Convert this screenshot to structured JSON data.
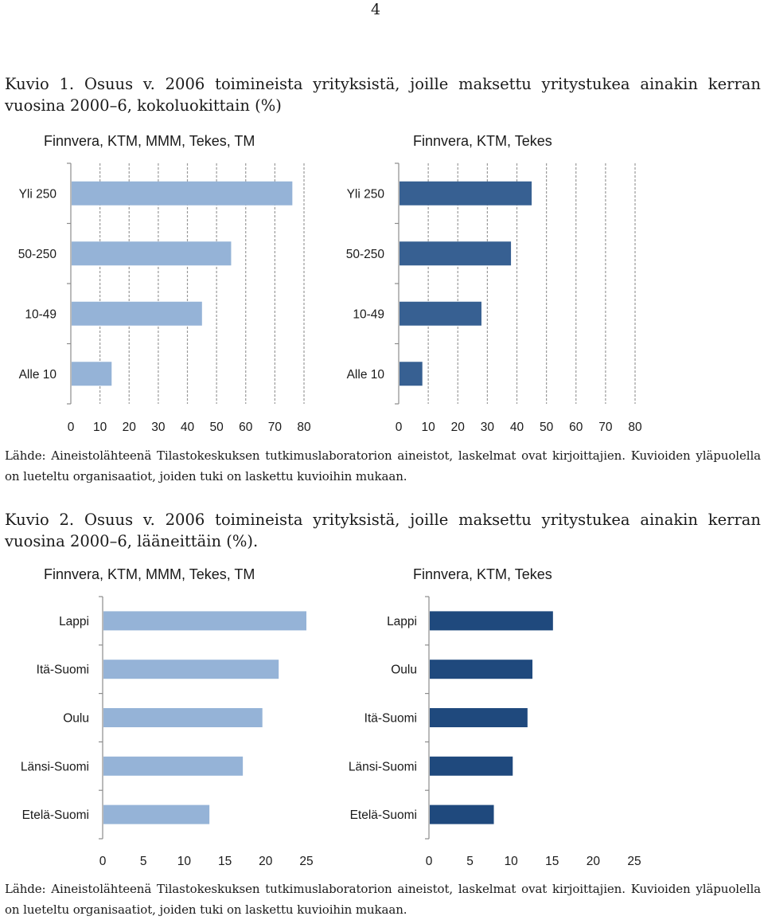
{
  "page_number": "4",
  "figure1": {
    "caption": "Kuvio 1. Osuus v. 2006 toimineista yrityksistä, joille maksettu yritystukea ainakin kerran vuosina 2000–6, kokoluokittain (%)",
    "source": "Lähde: Aineistolähteenä Tilastokeskuksen tutkimuslaboratorion aineistot, laskelmat ovat kirjoittajien. Kuvioiden yläpuolella on lueteltu organisaatiot, joiden tuki on laskettu kuvioihin mukaan."
  },
  "figure2": {
    "caption": "Kuvio 2. Osuus v. 2006 toimineista yrityksistä, joille maksettu yritystukea ainakin kerran vuosina 2000–6, lääneittäin (%).",
    "source": "Lähde: Aineistolähteenä Tilastokeskuksen tutkimuslaboratorion aineistot, laskelmat ovat kirjoittajien. Kuvioiden yläpuolella on lueteltu organisaatiot, joiden tuki on laskettu kuvioihin mukaan."
  },
  "chart_data": [
    {
      "type": "bar",
      "orientation": "horizontal",
      "title": "Finnvera, KTM, MMM, Tekes, TM",
      "categories": [
        "Yli 250",
        "50-250",
        "10-49",
        "Alle 10"
      ],
      "values": [
        76,
        55,
        45,
        14
      ],
      "xlim": [
        0,
        80
      ],
      "xticks": [
        0,
        10,
        20,
        30,
        40,
        50,
        60,
        70,
        80
      ],
      "color": "#95b3d7",
      "grid": true
    },
    {
      "type": "bar",
      "orientation": "horizontal",
      "title": "Finnvera, KTM, Tekes",
      "categories": [
        "Yli 250",
        "50-250",
        "10-49",
        "Alle 10"
      ],
      "values": [
        45,
        38,
        28,
        8
      ],
      "xlim": [
        0,
        80
      ],
      "xticks": [
        0,
        10,
        20,
        30,
        40,
        50,
        60,
        70,
        80
      ],
      "color": "#376092",
      "grid": true
    },
    {
      "type": "bar",
      "orientation": "horizontal",
      "title": "Finnvera, KTM, MMM, Tekes, TM",
      "categories": [
        "Lappi",
        "Itä-Suomi",
        "Oulu",
        "Länsi-Suomi",
        "Etelä-Suomi"
      ],
      "values": [
        25,
        21.6,
        19.6,
        17.2,
        13.1
      ],
      "xlim": [
        0,
        25
      ],
      "xticks": [
        0,
        5,
        10,
        15,
        20,
        25
      ],
      "color": "#95b3d7",
      "grid": false
    },
    {
      "type": "bar",
      "orientation": "horizontal",
      "title": "Finnvera, KTM, Tekes",
      "categories": [
        "Lappi",
        "Oulu",
        "Itä-Suomi",
        "Länsi-Suomi",
        "Etelä-Suomi"
      ],
      "values": [
        15.1,
        12.6,
        12.0,
        10.2,
        7.9
      ],
      "xlim": [
        0,
        25
      ],
      "xticks": [
        0,
        5,
        10,
        15,
        20,
        25
      ],
      "color": "#1f497d",
      "grid": false
    }
  ]
}
